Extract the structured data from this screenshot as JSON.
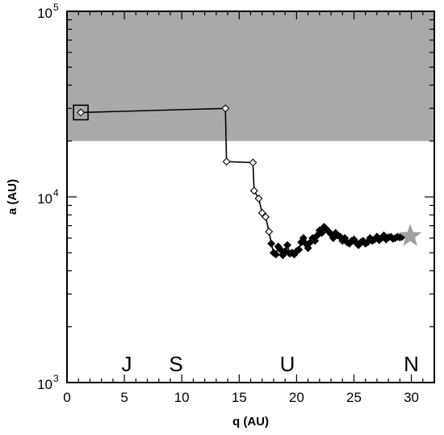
{
  "chart_data": {
    "type": "scatter",
    "title": "",
    "xlabel": "q (AU)",
    "ylabel": "a (AU)",
    "xlim": [
      0,
      32
    ],
    "ylim": [
      1000,
      100000
    ],
    "y_scale": "log",
    "grid": false,
    "x_ticks": [
      0,
      5,
      10,
      15,
      20,
      25,
      30
    ],
    "y_ticks": [
      {
        "value": 1000,
        "base": "10",
        "exp": "3"
      },
      {
        "value": 10000,
        "base": "10",
        "exp": "4"
      },
      {
        "value": 100000,
        "base": "10",
        "exp": "5"
      }
    ],
    "shaded_region": {
      "y_from": 20000,
      "y_to": 100000,
      "color": "#a9a9a9"
    },
    "planets": [
      {
        "label": "J",
        "q": 5.2
      },
      {
        "label": "S",
        "q": 9.5
      },
      {
        "label": "U",
        "q": 19.2
      },
      {
        "label": "N",
        "q": 30.0
      }
    ],
    "start_marker": {
      "q": 1.2,
      "a": 28500,
      "shape": "square"
    },
    "end_marker": {
      "q": 29.9,
      "a": 6150,
      "shape": "star",
      "color": "#a0a0a0"
    },
    "series": [
      {
        "marker": "diamond",
        "color": "#000000",
        "x": [
          1.2,
          13.8,
          13.9,
          16.2,
          16.3,
          16.7,
          17.0,
          17.3,
          17.6,
          17.8,
          18.0,
          18.2,
          18.4,
          18.6,
          18.8,
          19.0,
          19.2,
          19.4,
          19.6,
          19.8,
          20.0,
          20.2,
          20.4,
          20.6,
          20.8,
          21.0,
          21.2,
          21.4,
          21.6,
          21.8,
          22.0,
          22.2,
          22.4,
          22.6,
          22.8,
          23.0,
          23.2,
          23.4,
          23.6,
          23.8,
          24.0,
          24.2,
          24.4,
          24.6,
          24.8,
          25.0,
          25.2,
          25.4,
          25.6,
          25.8,
          26.0,
          26.2,
          26.4,
          26.6,
          26.8,
          27.0,
          27.2,
          27.4,
          27.6,
          27.8,
          28.0,
          28.2,
          28.4,
          28.6,
          28.8,
          29.0,
          29.2
        ],
        "y": [
          28500,
          30000,
          15500,
          15300,
          10800,
          9800,
          8200,
          7800,
          6500,
          5600,
          5000,
          4900,
          5400,
          5200,
          4850,
          5100,
          5500,
          4950,
          5000,
          4900,
          5100,
          5200,
          5700,
          6000,
          5600,
          5300,
          5700,
          6000,
          5800,
          6200,
          6600,
          6400,
          6900,
          6700,
          6500,
          6300,
          6000,
          6400,
          6200,
          6100,
          5800,
          6000,
          5700,
          5600,
          5800,
          5900,
          5650,
          5500,
          5700,
          5800,
          5600,
          5700,
          6000,
          5800,
          5900,
          6100,
          5850,
          6000,
          6200,
          5900,
          6050,
          6100,
          5950,
          6000,
          6100,
          6050,
          6100
        ]
      }
    ]
  }
}
